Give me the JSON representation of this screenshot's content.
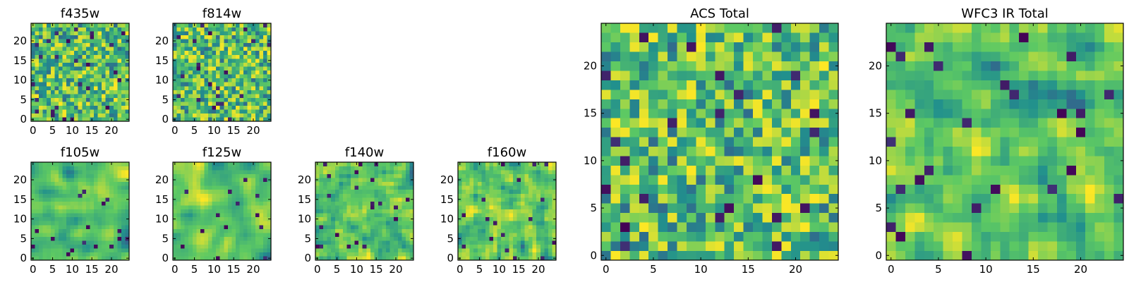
{
  "chart_data": [
    {
      "type": "heatmap",
      "title": "f435w",
      "grid_size": 25,
      "xticks": [
        "0",
        "5",
        "10",
        "15",
        "20"
      ],
      "yticks": [
        "0",
        "5",
        "10",
        "15",
        "20"
      ],
      "colormap": "viridis",
      "seed": 11,
      "smooth": 0
    },
    {
      "type": "heatmap",
      "title": "f814w",
      "grid_size": 25,
      "xticks": [
        "0",
        "5",
        "10",
        "15",
        "20"
      ],
      "yticks": [
        "0",
        "5",
        "10",
        "15",
        "20"
      ],
      "colormap": "viridis",
      "seed": 23,
      "smooth": 0
    },
    {
      "type": "heatmap",
      "title": "f105w",
      "grid_size": 25,
      "xticks": [
        "0",
        "5",
        "10",
        "15",
        "20"
      ],
      "yticks": [
        "0",
        "5",
        "10",
        "15",
        "20"
      ],
      "colormap": "viridis",
      "seed": 37,
      "smooth": 2
    },
    {
      "type": "heatmap",
      "title": "f125w",
      "grid_size": 25,
      "xticks": [
        "0",
        "5",
        "10",
        "15",
        "20"
      ],
      "yticks": [
        "0",
        "5",
        "10",
        "15",
        "20"
      ],
      "colormap": "viridis",
      "seed": 41,
      "smooth": 2
    },
    {
      "type": "heatmap",
      "title": "f140w",
      "grid_size": 25,
      "xticks": [
        "0",
        "5",
        "10",
        "15",
        "20"
      ],
      "yticks": [
        "0",
        "5",
        "10",
        "15",
        "20"
      ],
      "colormap": "viridis",
      "seed": 53,
      "smooth": 1
    },
    {
      "type": "heatmap",
      "title": "f160w",
      "grid_size": 25,
      "xticks": [
        "0",
        "5",
        "10",
        "15",
        "20"
      ],
      "yticks": [
        "0",
        "5",
        "10",
        "15",
        "20"
      ],
      "colormap": "viridis",
      "seed": 67,
      "smooth": 1
    },
    {
      "type": "heatmap",
      "title": "ACS Total",
      "grid_size": 25,
      "xticks": [
        "0",
        "5",
        "10",
        "15",
        "20"
      ],
      "yticks": [
        "0",
        "5",
        "10",
        "15",
        "20"
      ],
      "colormap": "viridis",
      "seed": 79,
      "smooth": 0
    },
    {
      "type": "heatmap",
      "title": "WFC3 IR Total",
      "grid_size": 25,
      "xticks": [
        "0",
        "5",
        "10",
        "15",
        "20"
      ],
      "yticks": [
        "0",
        "5",
        "10",
        "15",
        "20"
      ],
      "colormap": "viridis",
      "seed": 97,
      "smooth": 1
    }
  ],
  "colors": {
    "viridis": [
      "#440154",
      "#3b528b",
      "#21908d",
      "#5dc963",
      "#fde725"
    ],
    "axis": "#000000",
    "background": "#ffffff"
  }
}
